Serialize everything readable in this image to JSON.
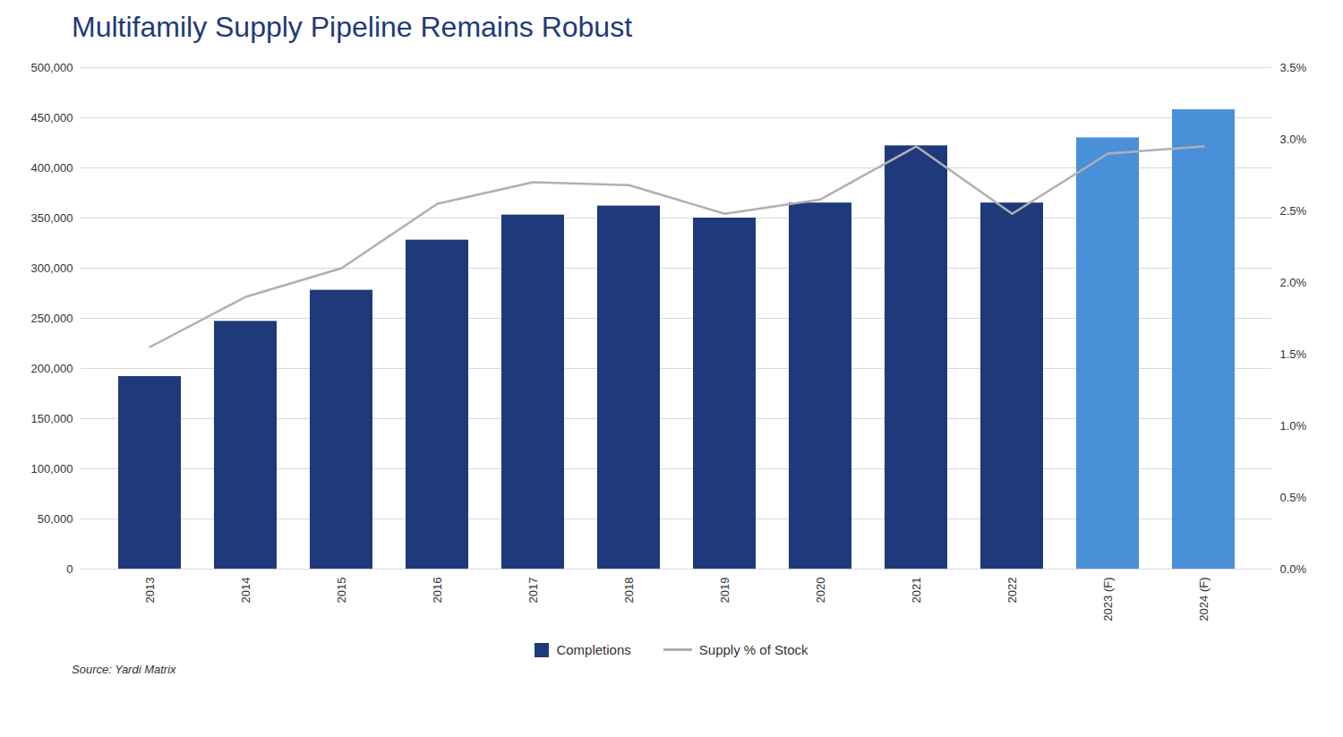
{
  "chart_data": {
    "type": "bar",
    "title": "Multifamily Supply Pipeline Remains Robust",
    "source": "Source: Yardi Matrix",
    "categories": [
      "2013",
      "2014",
      "2015",
      "2016",
      "2017",
      "2018",
      "2019",
      "2020",
      "2021",
      "2022",
      "2023 (F)",
      "2024 (F)"
    ],
    "series": [
      {
        "name": "Completions",
        "type": "bar",
        "color": "#1f3a7a",
        "colors": [
          "#1f3a7a",
          "#1f3a7a",
          "#1f3a7a",
          "#1f3a7a",
          "#1f3a7a",
          "#1f3a7a",
          "#1f3a7a",
          "#1f3a7a",
          "#1f3a7a",
          "#1f3a7a",
          "#4a90d9",
          "#4a90d9"
        ],
        "values": [
          192000,
          247000,
          278000,
          328000,
          353000,
          362000,
          350000,
          365000,
          422000,
          365000,
          430000,
          458000
        ]
      },
      {
        "name": "Supply % of Stock",
        "type": "line",
        "color": "#b0b0b0",
        "axis": "y2",
        "values": [
          1.55,
          1.9,
          2.1,
          2.55,
          2.7,
          2.68,
          2.48,
          2.58,
          2.95,
          2.48,
          2.9,
          2.95
        ]
      }
    ],
    "ylim": [
      0,
      500000
    ],
    "yticks": [
      0,
      {
        "value": 50000,
        "label": "50,000"
      },
      {
        "value": 100000,
        "label": "100,000"
      },
      {
        "value": 150000,
        "label": "150,000"
      },
      {
        "value": 200000,
        "label": "200,000"
      },
      {
        "value": 250000,
        "label": "250,000"
      },
      {
        "value": 300000,
        "label": "300,000"
      },
      {
        "value": 350000,
        "label": "350,000"
      },
      {
        "value": 400000,
        "label": "400,000"
      },
      {
        "value": 450000,
        "label": "450,000"
      },
      {
        "value": 500000,
        "label": "500,000"
      }
    ],
    "y2lim": [
      0.0,
      3.5
    ],
    "y2ticks": [
      {
        "value": 0.0,
        "label": "0.0%"
      },
      {
        "value": 0.5,
        "label": "0.5%"
      },
      {
        "value": 1.0,
        "label": "1.0%"
      },
      {
        "value": 1.5,
        "label": "1.5%"
      },
      {
        "value": 2.0,
        "label": "2.0%"
      },
      {
        "value": 2.5,
        "label": "2.5%"
      },
      {
        "value": 3.0,
        "label": "3.0%"
      },
      {
        "value": 3.5,
        "label": "3.5%"
      }
    ],
    "grid": true,
    "legend": "bottom"
  }
}
